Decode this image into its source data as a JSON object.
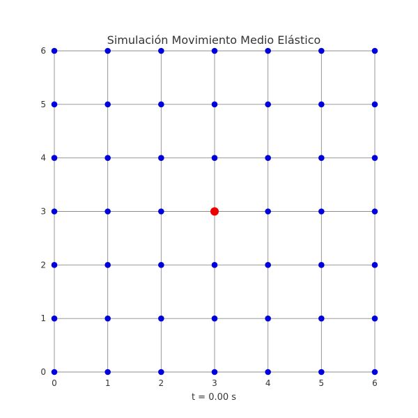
{
  "chart_data": {
    "type": "scatter",
    "title": "Simulación Movimiento Medio Elástico",
    "xlabel": "t = 0.00 s",
    "ylabel": "",
    "xlim": [
      0,
      6
    ],
    "ylim": [
      0,
      6
    ],
    "x_ticks": [
      "0",
      "1",
      "2",
      "3",
      "4",
      "5",
      "6"
    ],
    "y_ticks": [
      "0",
      "1",
      "2",
      "3",
      "4",
      "5",
      "6"
    ],
    "grid": true,
    "point_color": "#0000dd",
    "highlight_color": "#ee0000",
    "grid_color": "#8c8c8c",
    "series": [
      {
        "points": [
          [
            0,
            0
          ],
          [
            1,
            0
          ],
          [
            2,
            0
          ],
          [
            3,
            0
          ],
          [
            4,
            0
          ],
          [
            5,
            0
          ],
          [
            6,
            0
          ],
          [
            0,
            1
          ],
          [
            1,
            1
          ],
          [
            2,
            1
          ],
          [
            3,
            1
          ],
          [
            4,
            1
          ],
          [
            5,
            1
          ],
          [
            6,
            1
          ],
          [
            0,
            2
          ],
          [
            1,
            2
          ],
          [
            2,
            2
          ],
          [
            3,
            2
          ],
          [
            4,
            2
          ],
          [
            5,
            2
          ],
          [
            6,
            2
          ],
          [
            0,
            3
          ],
          [
            1,
            3
          ],
          [
            2,
            3
          ],
          [
            4,
            3
          ],
          [
            5,
            3
          ],
          [
            6,
            3
          ],
          [
            0,
            4
          ],
          [
            1,
            4
          ],
          [
            2,
            4
          ],
          [
            3,
            4
          ],
          [
            4,
            4
          ],
          [
            5,
            4
          ],
          [
            6,
            4
          ],
          [
            0,
            5
          ],
          [
            1,
            5
          ],
          [
            2,
            5
          ],
          [
            3,
            5
          ],
          [
            4,
            5
          ],
          [
            5,
            5
          ],
          [
            6,
            5
          ],
          [
            0,
            6
          ],
          [
            1,
            6
          ],
          [
            2,
            6
          ],
          [
            3,
            6
          ],
          [
            4,
            6
          ],
          [
            5,
            6
          ],
          [
            6,
            6
          ]
        ]
      },
      {
        "points": [
          [
            3,
            3
          ]
        ],
        "highlight": true
      }
    ]
  }
}
